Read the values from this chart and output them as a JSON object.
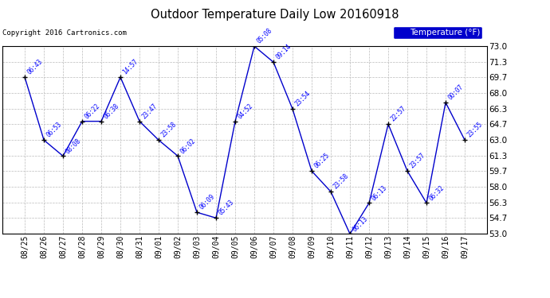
{
  "title": "Outdoor Temperature Daily Low 20160918",
  "copyright": "Copyright 2016 Cartronics.com",
  "legend_label": "Temperature (°F)",
  "dates": [
    "08/25",
    "08/26",
    "08/27",
    "08/28",
    "08/29",
    "08/30",
    "08/31",
    "09/01",
    "09/02",
    "09/03",
    "09/04",
    "09/05",
    "09/06",
    "09/07",
    "09/08",
    "09/09",
    "09/10",
    "09/11",
    "09/12",
    "09/13",
    "09/14",
    "09/15",
    "09/16",
    "09/17"
  ],
  "temps": [
    69.7,
    63.0,
    61.3,
    65.0,
    65.0,
    69.7,
    65.0,
    63.0,
    61.3,
    55.3,
    54.7,
    65.0,
    73.0,
    71.3,
    66.3,
    59.7,
    57.5,
    53.0,
    56.3,
    64.7,
    59.7,
    56.3,
    67.0,
    63.0
  ],
  "time_labels": [
    "06:43",
    "06:53",
    "08:08",
    "06:22",
    "06:38",
    "14:57",
    "23:47",
    "23:58",
    "06:02",
    "06:09",
    "05:43",
    "04:52",
    "05:08",
    "09:14",
    "23:54",
    "06:25",
    "23:58",
    "06:13",
    "06:13",
    "22:57",
    "23:57",
    "06:32",
    "00:07",
    "23:55"
  ],
  "ylim": [
    53.0,
    73.0
  ],
  "yticks": [
    53.0,
    54.7,
    56.3,
    58.0,
    59.7,
    61.3,
    63.0,
    64.7,
    66.3,
    68.0,
    69.7,
    71.3,
    73.0
  ],
  "line_color": "#0000cc",
  "marker_color": "#000000",
  "bg_color": "#ffffff",
  "plot_bg_color": "#ffffff",
  "grid_color": "#bbbbbb",
  "title_color": "#000000",
  "label_color": "#0000ff",
  "legend_bg": "#0000cc",
  "legend_text": "#ffffff"
}
